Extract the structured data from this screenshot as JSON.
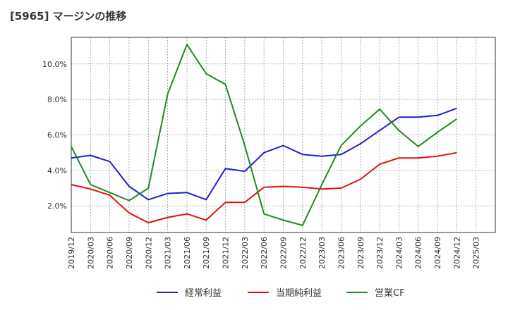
{
  "title": "[5965]  マージンの推移",
  "chart_data": {
    "type": "line",
    "title": "[5965]  マージンの推移",
    "xlabel": "",
    "ylabel": "",
    "x": [
      "2019/12",
      "2020/03",
      "2020/06",
      "2020/09",
      "2020/12",
      "2021/03",
      "2021/06",
      "2021/09",
      "2021/12",
      "2022/03",
      "2022/06",
      "2022/09",
      "2022/12",
      "2023/03",
      "2023/06",
      "2023/09",
      "2023/12",
      "2024/03",
      "2024/06",
      "2024/09",
      "2024/12"
    ],
    "x_ticks": [
      "2019/12",
      "2020/03",
      "2020/06",
      "2020/09",
      "2020/12",
      "2021/03",
      "2021/06",
      "2021/09",
      "2021/12",
      "2022/03",
      "2022/06",
      "2022/09",
      "2022/12",
      "2023/03",
      "2023/06",
      "2023/09",
      "2023/12",
      "2024/03",
      "2024/06",
      "2024/09",
      "2024/12",
      "2025/03"
    ],
    "y_ticks": [
      "2.0%",
      "4.0%",
      "6.0%",
      "8.0%",
      "10.0%"
    ],
    "ylim": [
      0.5,
      11.5
    ],
    "grid": true,
    "legend_position": "bottom",
    "series": [
      {
        "name": "経常利益",
        "color": "#1f1fcc",
        "values": [
          4.7,
          4.85,
          4.5,
          3.1,
          2.35,
          2.7,
          2.75,
          2.35,
          4.1,
          3.95,
          5.0,
          5.4,
          4.9,
          4.8,
          4.9,
          5.5,
          6.25,
          7.0,
          7.0,
          7.1,
          7.5
        ]
      },
      {
        "name": "当期純利益",
        "color": "#dd1111",
        "values": [
          3.2,
          2.95,
          2.6,
          1.6,
          1.05,
          1.35,
          1.55,
          1.2,
          2.2,
          2.2,
          3.05,
          3.1,
          3.05,
          2.95,
          3.0,
          3.5,
          4.35,
          4.7,
          4.7,
          4.8,
          5.0
        ]
      },
      {
        "name": "営業CF",
        "color": "#228822",
        "values": [
          5.35,
          3.2,
          2.75,
          2.3,
          3.0,
          8.3,
          11.1,
          9.45,
          8.85,
          5.4,
          1.55,
          1.2,
          0.9,
          3.2,
          5.4,
          6.5,
          7.45,
          6.25,
          5.35,
          6.15,
          6.9
        ]
      }
    ]
  }
}
